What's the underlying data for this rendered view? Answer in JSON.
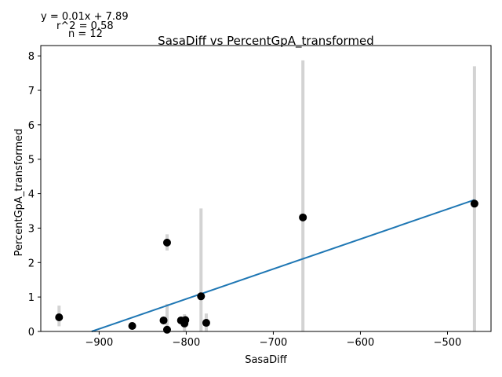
{
  "chart_data": {
    "type": "scatter",
    "title": "SasaDiff vs PercentGpA_transformed",
    "xlabel": "SasaDiff",
    "ylabel": "PercentGpA_transformed",
    "xlim": [
      -967,
      -450
    ],
    "ylim": [
      0,
      8.3
    ],
    "xticks": [
      -900,
      -800,
      -700,
      -600,
      -500
    ],
    "yticks": [
      0,
      1,
      2,
      3,
      4,
      5,
      6,
      7,
      8
    ],
    "grid": false,
    "annotations": [
      "y = 0.01x + 7.89",
      "r^2 = 0.58",
      "n = 12"
    ],
    "points": [
      {
        "x": -946,
        "y": 0.41,
        "err_low": 0.15,
        "err_high": 0.75
      },
      {
        "x": -862,
        "y": 0.16,
        "err_low": 0.1,
        "err_high": 0.22
      },
      {
        "x": -826,
        "y": 0.32,
        "err_low": 0.25,
        "err_high": 0.4
      },
      {
        "x": -822,
        "y": 2.58,
        "err_low": 2.35,
        "err_high": 2.82
      },
      {
        "x": -822,
        "y": 0.05,
        "err_low": 0.0,
        "err_high": 0.8
      },
      {
        "x": -806,
        "y": 0.32,
        "err_low": 0.22,
        "err_high": 0.42
      },
      {
        "x": -802,
        "y": 0.23,
        "err_low": 0.0,
        "err_high": 0.5
      },
      {
        "x": -801,
        "y": 0.33,
        "err_low": 0.2,
        "err_high": 0.45
      },
      {
        "x": -783,
        "y": 1.02,
        "err_low": 0.0,
        "err_high": 3.57
      },
      {
        "x": -777,
        "y": 0.25,
        "err_low": 0.0,
        "err_high": 0.52
      },
      {
        "x": -666,
        "y": 3.31,
        "err_low": 0.0,
        "err_high": 7.87
      },
      {
        "x": -469,
        "y": 3.71,
        "err_low": 0.0,
        "err_high": 7.7
      }
    ],
    "fit_line": {
      "x": [
        -946,
        -469
      ],
      "y": [
        -0.325,
        3.82
      ]
    },
    "colors": {
      "points": "#000000",
      "errorbars": "#d3d3d3",
      "fit": "#1f77b4"
    }
  }
}
